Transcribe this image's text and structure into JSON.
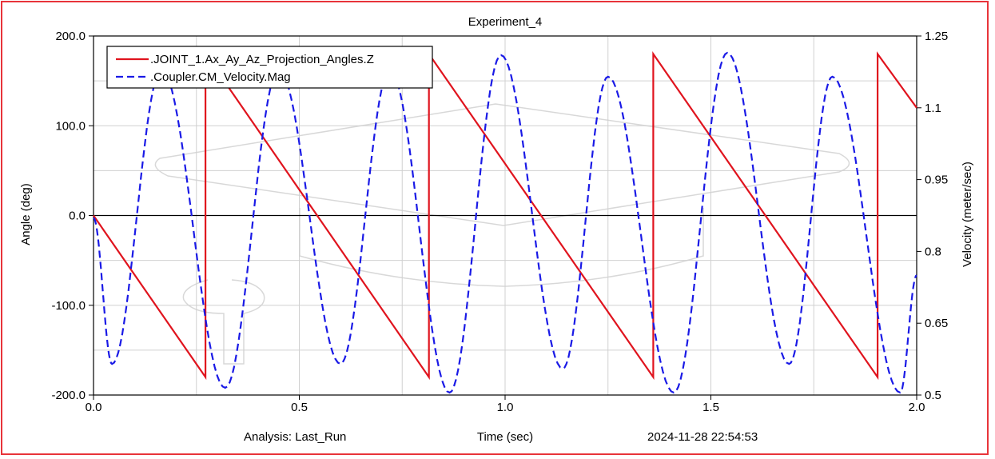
{
  "chart_data": {
    "type": "line",
    "title": "Experiment_4",
    "xlabel": "Time (sec)",
    "ylabel": "Angle (deg)",
    "y2label": "Velocity (meter/sec)",
    "xlim": [
      0.0,
      2.0
    ],
    "ylim": [
      -200.0,
      200.0
    ],
    "y2lim": [
      0.5,
      1.25
    ],
    "x_ticks": [
      "0.0",
      "0.5",
      "1.0",
      "1.5",
      "2.0"
    ],
    "y_ticks": [
      "200.0",
      "100.0",
      "0.0",
      "-100.0",
      "-200.0"
    ],
    "y2_ticks": [
      "1.25",
      "1.1",
      "0.95",
      "0.8",
      "0.65",
      "0.5"
    ],
    "grid": true,
    "legend_position": "top-left",
    "footer": {
      "analysis": "Analysis:  Last_Run",
      "timestamp": "2024-11-28 22:54:53"
    },
    "series": [
      {
        "name": ".JOINT_1.Ax_Ay_Az_Projection_Angles.Z",
        "color": "#e0141e",
        "style": "solid",
        "axis": "left",
        "x": [
          0.0,
          0.272,
          0.272,
          0.815,
          0.815,
          1.36,
          1.36,
          1.905,
          1.905,
          2.0
        ],
        "y": [
          0.0,
          -180.0,
          180.0,
          -180.0,
          180.0,
          -180.0,
          180.0,
          -180.0,
          180.0,
          120.0
        ]
      },
      {
        "name": ".Coupler.CM_Velocity.Mag",
        "color": "#1a1ae6",
        "style": "dashed",
        "axis": "right",
        "x": [
          0.0,
          0.045,
          0.165,
          0.32,
          0.45,
          0.6,
          0.72,
          0.865,
          0.99,
          1.14,
          1.25,
          1.41,
          1.54,
          1.69,
          1.795,
          1.96,
          2.0
        ],
        "y": [
          0.87,
          0.565,
          1.18,
          0.515,
          1.18,
          0.565,
          1.18,
          0.505,
          1.21,
          0.555,
          1.165,
          0.505,
          1.215,
          0.565,
          1.165,
          0.505,
          0.75
        ]
      }
    ]
  }
}
